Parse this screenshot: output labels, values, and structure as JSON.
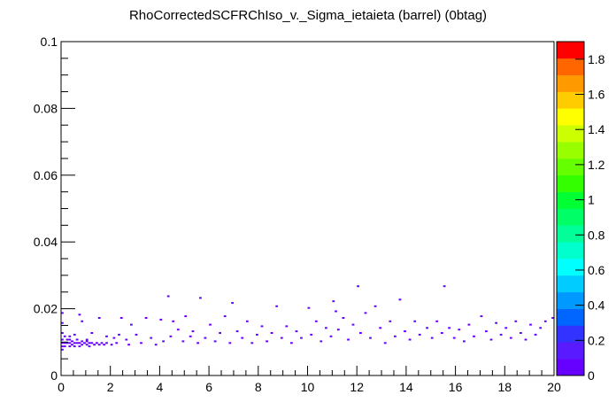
{
  "chart_data": {
    "type": "heatmap",
    "title": "RhoCorrectedSCFRChIso_v._Sigma_ietaieta (barrel) (0btag)",
    "xlabel": "",
    "ylabel": "",
    "xlim": [
      0,
      20
    ],
    "ylim": [
      0,
      0.1
    ],
    "x_ticks": [
      "0",
      "2",
      "4",
      "6",
      "8",
      "10",
      "12",
      "14",
      "16",
      "18",
      "20"
    ],
    "y_ticks": [
      "0",
      "0.02",
      "0.04",
      "0.06",
      "0.08",
      "0.1"
    ],
    "z_range": [
      0,
      1.9
    ],
    "colorbar_ticks": [
      "0",
      "0.2",
      "0.4",
      "0.6",
      "0.8",
      "1",
      "1.2",
      "1.4",
      "1.6",
      "1.8"
    ],
    "colorbar_colors": [
      "#6600ff",
      "#5a1aff",
      "#3333ff",
      "#0066ff",
      "#0099ff",
      "#00ccff",
      "#00ffff",
      "#00ffcc",
      "#00ff99",
      "#00ff66",
      "#00ff33",
      "#33ff00",
      "#66ff00",
      "#99ff00",
      "#ccff00",
      "#ffff00",
      "#ffcc00",
      "#ff9900",
      "#ff6600",
      "#ff0000"
    ],
    "cell_size": {
      "x": 0.1,
      "y": 0.0005
    },
    "cells": [
      [
        0.05,
        0.0075,
        1
      ],
      [
        0.05,
        0.0085,
        1
      ],
      [
        0.05,
        0.0095,
        1
      ],
      [
        0.05,
        0.0105,
        1
      ],
      [
        0.05,
        0.0125,
        1
      ],
      [
        0.05,
        0.0155,
        1
      ],
      [
        0.05,
        0.0185,
        1
      ],
      [
        0.15,
        0.0085,
        1
      ],
      [
        0.15,
        0.0095,
        1
      ],
      [
        0.15,
        0.0115,
        1
      ],
      [
        0.25,
        0.0095,
        1
      ],
      [
        0.25,
        0.0105,
        1
      ],
      [
        0.35,
        0.0085,
        1
      ],
      [
        0.35,
        0.0095,
        1
      ],
      [
        0.35,
        0.0105,
        1
      ],
      [
        0.45,
        0.009,
        1
      ],
      [
        0.45,
        0.01,
        1
      ],
      [
        0.55,
        0.0085,
        1
      ],
      [
        0.55,
        0.0095,
        1
      ],
      [
        0.65,
        0.0095,
        1
      ],
      [
        0.65,
        0.0105,
        1
      ],
      [
        0.75,
        0.0085,
        1
      ],
      [
        0.75,
        0.0095,
        1
      ],
      [
        0.85,
        0.009,
        1
      ],
      [
        0.85,
        0.01,
        1
      ],
      [
        0.95,
        0.0095,
        1
      ],
      [
        1.05,
        0.009,
        1
      ],
      [
        1.05,
        0.01,
        1
      ],
      [
        1.15,
        0.0085,
        1
      ],
      [
        1.15,
        0.0095,
        1
      ],
      [
        1.25,
        0.0095,
        1
      ],
      [
        1.35,
        0.009,
        1
      ],
      [
        1.45,
        0.0095,
        1
      ],
      [
        1.55,
        0.009,
        1
      ],
      [
        1.65,
        0.0095,
        1
      ],
      [
        1.75,
        0.009,
        1
      ],
      [
        1.85,
        0.0095,
        1
      ],
      [
        2.05,
        0.009,
        1
      ],
      [
        2.25,
        0.0095,
        1
      ],
      [
        0.35,
        0.0115,
        1
      ],
      [
        0.55,
        0.012,
        1
      ],
      [
        0.75,
        0.018,
        1
      ],
      [
        0.85,
        0.016,
        1
      ],
      [
        1.05,
        0.0105,
        1
      ],
      [
        1.25,
        0.0125,
        1
      ],
      [
        1.55,
        0.017,
        1
      ],
      [
        1.85,
        0.0115,
        1
      ],
      [
        2.15,
        0.011,
        1
      ],
      [
        2.35,
        0.012,
        1
      ],
      [
        2.45,
        0.017,
        1
      ],
      [
        2.65,
        0.0105,
        1
      ],
      [
        2.75,
        0.009,
        1
      ],
      [
        2.85,
        0.015,
        1
      ],
      [
        3.05,
        0.012,
        1
      ],
      [
        3.25,
        0.0095,
        1
      ],
      [
        3.45,
        0.017,
        1
      ],
      [
        3.65,
        0.011,
        1
      ],
      [
        3.85,
        0.009,
        1
      ],
      [
        4.05,
        0.0165,
        1
      ],
      [
        4.15,
        0.01,
        1
      ],
      [
        4.35,
        0.0235,
        1
      ],
      [
        4.45,
        0.0115,
        1
      ],
      [
        4.55,
        0.016,
        1
      ],
      [
        4.75,
        0.0135,
        1
      ],
      [
        4.95,
        0.01,
        1
      ],
      [
        5.05,
        0.0175,
        1
      ],
      [
        5.25,
        0.0115,
        1
      ],
      [
        5.35,
        0.013,
        1
      ],
      [
        5.55,
        0.0095,
        1
      ],
      [
        5.65,
        0.023,
        1
      ],
      [
        5.85,
        0.011,
        1
      ],
      [
        6.05,
        0.015,
        1
      ],
      [
        6.25,
        0.01,
        1
      ],
      [
        6.45,
        0.0125,
        1
      ],
      [
        6.65,
        0.0175,
        1
      ],
      [
        6.85,
        0.0095,
        1
      ],
      [
        6.95,
        0.0215,
        1
      ],
      [
        7.15,
        0.013,
        1
      ],
      [
        7.35,
        0.011,
        1
      ],
      [
        7.55,
        0.016,
        1
      ],
      [
        7.75,
        0.0095,
        1
      ],
      [
        7.95,
        0.012,
        1
      ],
      [
        8.15,
        0.0145,
        1
      ],
      [
        8.35,
        0.01,
        1
      ],
      [
        8.55,
        0.0125,
        1
      ],
      [
        8.75,
        0.0205,
        1
      ],
      [
        8.95,
        0.011,
        1
      ],
      [
        9.15,
        0.0145,
        1
      ],
      [
        9.35,
        0.0095,
        1
      ],
      [
        9.55,
        0.013,
        1
      ],
      [
        9.75,
        0.011,
        1
      ],
      [
        10.05,
        0.02,
        1
      ],
      [
        10.15,
        0.012,
        1
      ],
      [
        10.35,
        0.016,
        1
      ],
      [
        10.55,
        0.01,
        1
      ],
      [
        10.75,
        0.014,
        1
      ],
      [
        10.95,
        0.0115,
        1
      ],
      [
        11.05,
        0.022,
        1
      ],
      [
        11.15,
        0.019,
        1
      ],
      [
        11.25,
        0.0135,
        1
      ],
      [
        11.45,
        0.017,
        1
      ],
      [
        11.65,
        0.0105,
        1
      ],
      [
        11.85,
        0.015,
        1
      ],
      [
        12.05,
        0.0265,
        1
      ],
      [
        12.15,
        0.0125,
        1
      ],
      [
        12.35,
        0.0185,
        1
      ],
      [
        12.55,
        0.011,
        1
      ],
      [
        12.75,
        0.0205,
        1
      ],
      [
        12.95,
        0.014,
        1
      ],
      [
        13.15,
        0.0095,
        1
      ],
      [
        13.35,
        0.016,
        1
      ],
      [
        13.55,
        0.0115,
        1
      ],
      [
        13.75,
        0.0225,
        1
      ],
      [
        13.95,
        0.013,
        1
      ],
      [
        14.15,
        0.0105,
        1
      ],
      [
        14.35,
        0.016,
        1
      ],
      [
        14.55,
        0.012,
        1
      ],
      [
        14.85,
        0.014,
        1
      ],
      [
        15.05,
        0.011,
        1
      ],
      [
        15.25,
        0.016,
        1
      ],
      [
        15.45,
        0.0125,
        1
      ],
      [
        15.55,
        0.0265,
        1
      ],
      [
        15.75,
        0.014,
        1
      ],
      [
        15.95,
        0.011,
        1
      ],
      [
        16.15,
        0.0135,
        1
      ],
      [
        16.35,
        0.01,
        1
      ],
      [
        16.55,
        0.015,
        1
      ],
      [
        16.75,
        0.0115,
        1
      ],
      [
        17.05,
        0.0175,
        1
      ],
      [
        17.25,
        0.013,
        1
      ],
      [
        17.45,
        0.0105,
        1
      ],
      [
        17.65,
        0.0155,
        1
      ],
      [
        17.85,
        0.012,
        1
      ],
      [
        18.05,
        0.014,
        1
      ],
      [
        18.25,
        0.011,
        1
      ],
      [
        18.45,
        0.016,
        1
      ],
      [
        18.65,
        0.0125,
        1
      ],
      [
        18.85,
        0.0105,
        1
      ],
      [
        19.05,
        0.015,
        1
      ],
      [
        19.25,
        0.012,
        1
      ],
      [
        19.45,
        0.014,
        1
      ],
      [
        19.65,
        0.016,
        1
      ],
      [
        19.95,
        0.017,
        1
      ]
    ]
  }
}
